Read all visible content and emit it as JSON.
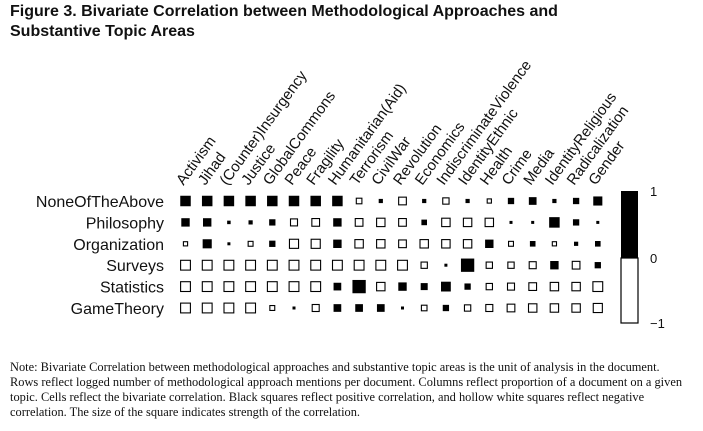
{
  "figure": {
    "title": "Figure 3. Bivariate Correlation between Methodological Approaches and Substantive Topic Areas",
    "note": "Note:  Bivariate Correlation between methodological approaches and substantive topic areas is the unit of analysis in the document. Rows reflect logged number of methodological approach mentions per document. Columns reflect proportion of a document on a given topic. Cells reflect the bivariate correlation. Black squares reflect positive correlation, and hollow white squares reflect negative correlation. The size of the square indicates strength of the correlation."
  },
  "chart_data": {
    "type": "heatmap",
    "encoding": "square size = |correlation|; filled black = positive, hollow white = negative",
    "rows": [
      "NoneOfTheAbove",
      "Philosophy",
      "Organization",
      "Surveys",
      "Statistics",
      "GameTheory"
    ],
    "columns": [
      "Activism",
      "Jihad",
      "(Counter)Insurgency",
      "Justice",
      "GlobalCommons",
      "Peace",
      "Fragility",
      "Humanitarian(Aid)",
      "Terrorism",
      "CivilWar",
      "Revolution",
      "Economics",
      "IndiscriminateViolence",
      "IdentityEthnic",
      "Health",
      "Crime",
      "Media",
      "IdentityReligious",
      "Radicalization",
      "Gender"
    ],
    "values": [
      [
        0.75,
        0.75,
        0.75,
        0.75,
        0.75,
        0.75,
        0.75,
        0.75,
        -0.4,
        0.3,
        -0.55,
        0.3,
        -0.45,
        0.3,
        -0.3,
        0.45,
        0.55,
        0.3,
        0.45,
        0.65
      ],
      [
        0.6,
        0.6,
        0.25,
        0.3,
        0.45,
        -0.5,
        -0.55,
        0.6,
        -0.55,
        -0.6,
        -0.55,
        0.4,
        -0.6,
        -0.6,
        -0.6,
        0.15,
        0.2,
        0.75,
        0.45,
        0.15
      ],
      [
        -0.3,
        0.65,
        0.2,
        -0.35,
        0.45,
        -0.65,
        -0.65,
        0.6,
        -0.6,
        -0.6,
        -0.55,
        -0.6,
        -0.6,
        -0.6,
        0.6,
        -0.35,
        0.4,
        -0.3,
        0.3,
        0.4
      ],
      [
        -0.7,
        -0.7,
        -0.7,
        -0.7,
        -0.7,
        -0.7,
        -0.7,
        -0.7,
        -0.7,
        -0.7,
        -0.7,
        -0.45,
        0.2,
        0.95,
        -0.45,
        -0.45,
        -0.5,
        0.6,
        -0.55,
        0.45
      ],
      [
        -0.7,
        -0.7,
        -0.7,
        -0.7,
        -0.7,
        -0.7,
        -0.7,
        0.55,
        0.95,
        -0.6,
        0.6,
        0.5,
        0.7,
        0.45,
        -0.45,
        -0.5,
        -0.55,
        -0.6,
        -0.6,
        -0.7
      ],
      [
        -0.7,
        -0.7,
        -0.7,
        -0.7,
        -0.35,
        0.2,
        -0.5,
        0.55,
        0.55,
        0.55,
        0.2,
        -0.4,
        0.45,
        -0.45,
        -0.5,
        -0.55,
        -0.6,
        -0.6,
        -0.6,
        -0.65
      ]
    ],
    "colorbar": {
      "ticks": [
        "1",
        "0",
        "−1"
      ],
      "range": [
        -1,
        1
      ]
    },
    "colors": {
      "positive": "#000000",
      "negative": "#ffffff",
      "outline": "#000000"
    }
  }
}
